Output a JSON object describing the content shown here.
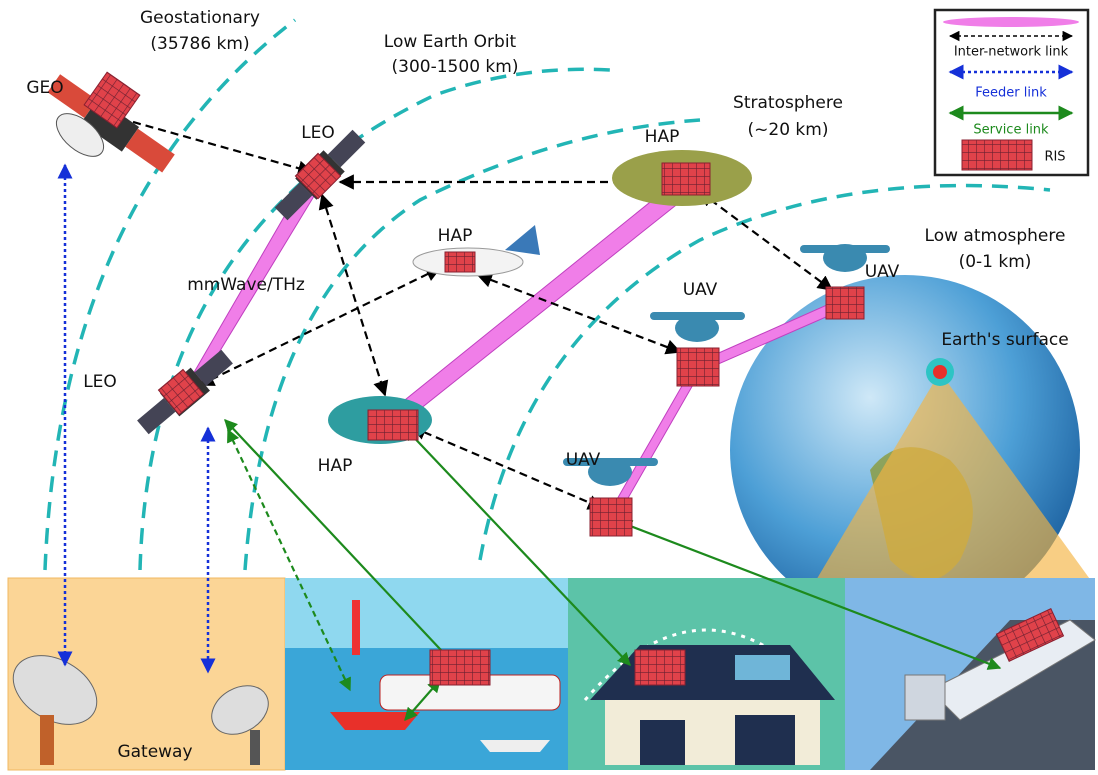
{
  "regions": [
    {
      "label": "Geostationary",
      "detail": "(35786 km)"
    },
    {
      "label": "Low Earth Orbit",
      "detail": "(300-1500 km)"
    },
    {
      "label": "Stratosphere",
      "detail": "(~20 km)"
    },
    {
      "label": "Low atmosphere",
      "detail": "(0-1 km)"
    }
  ],
  "nodes": [
    {
      "label": "GEO"
    },
    {
      "label": "LEO"
    },
    {
      "label": "LEO"
    },
    {
      "label": "HAP"
    },
    {
      "label": "HAP"
    },
    {
      "label": "HAP"
    },
    {
      "label": "UAV"
    },
    {
      "label": "UAV"
    },
    {
      "label": "UAV"
    }
  ],
  "annotations": {
    "beam": "mmWave/THz",
    "earth": "Earth's surface",
    "ground": "Gateway"
  },
  "legend": {
    "inter_network": "Inter-network link",
    "feeder": "Feeder link",
    "service": "Service link",
    "ris": "RIS"
  }
}
